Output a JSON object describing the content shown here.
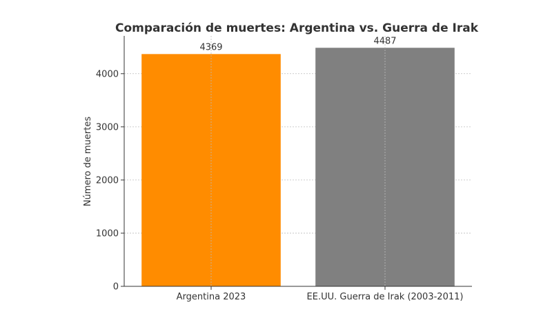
{
  "chart_data": {
    "type": "bar",
    "title": "Comparación de muertes: Argentina vs. Guerra de Irak",
    "xlabel": "",
    "ylabel": "Número de muertes",
    "categories": [
      "Argentina 2023",
      "EE.UU. Guerra de Irak (2003-2011)"
    ],
    "values": [
      4369,
      4487
    ],
    "data_labels": [
      "4369",
      "4487"
    ],
    "colors": [
      "#ff8c00",
      "#808080"
    ],
    "ylim": [
      0,
      4711
    ],
    "yticks": [
      0,
      1000,
      2000,
      3000,
      4000
    ],
    "ytick_labels": [
      "0",
      "1000",
      "2000",
      "3000",
      "4000"
    ],
    "grid": true,
    "legend": "none"
  }
}
